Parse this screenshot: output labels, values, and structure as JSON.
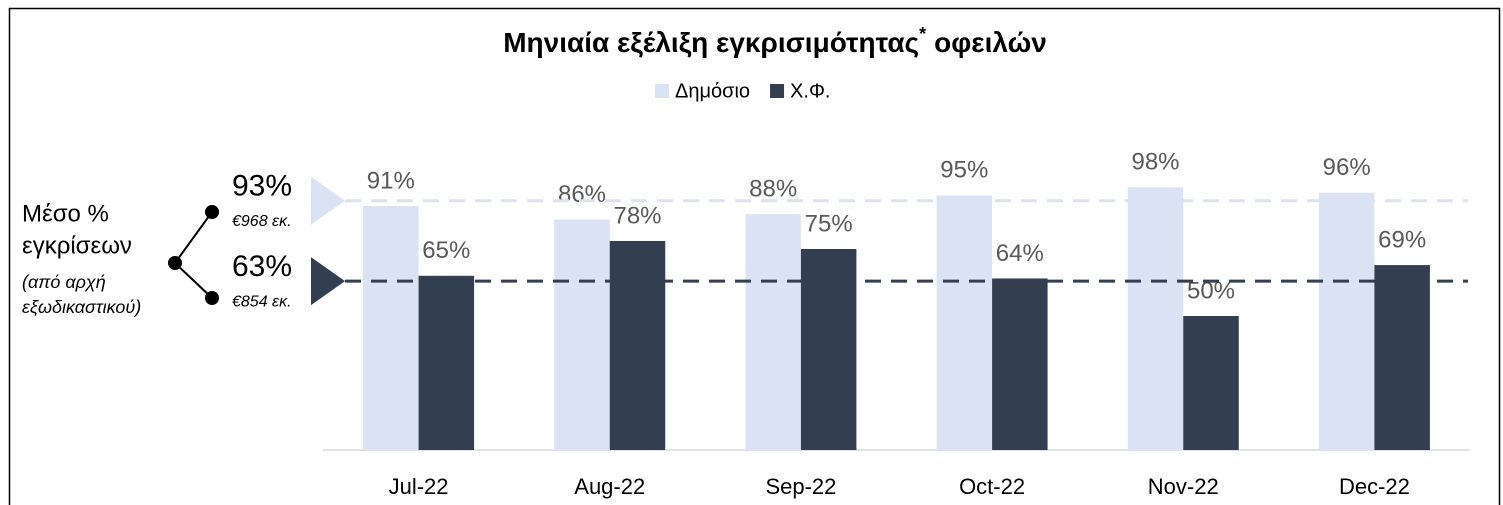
{
  "chart_data": {
    "type": "bar",
    "title": "Μηνιαία εξέλιξη εγκρισιμότητας",
    "title_mark": "*",
    "title_end": "οφειλών",
    "categories": [
      "Jul-22",
      "Aug-22",
      "Sep-22",
      "Oct-22",
      "Nov-22",
      "Dec-22"
    ],
    "series": [
      {
        "name": "Δημόσιο",
        "color": "#dae3f3",
        "values": [
          91,
          86,
          88,
          95,
          98,
          96
        ],
        "value_labels": [
          "91%",
          "86%",
          "88%",
          "95%",
          "98%",
          "96%"
        ]
      },
      {
        "name": "Χ.Φ.",
        "color": "#333f50",
        "values": [
          65,
          78,
          75,
          64,
          50,
          69
        ],
        "value_labels": [
          "65%",
          "78%",
          "75%",
          "64%",
          "50%",
          "69%"
        ]
      }
    ],
    "ylim": [
      0,
      100
    ],
    "reference_lines": [
      {
        "value": 93,
        "label": "93%",
        "note": "€968 εκ.",
        "color": "#dae3f3"
      },
      {
        "value": 63,
        "label": "63%",
        "note": "€854 εκ.",
        "color": "#333f50"
      }
    ],
    "annotation": [
      "Μέσο %",
      "εγκρίσεων"
    ],
    "annotation_note": [
      "(από αρχή",
      "εξωδικαστικού)"
    ]
  }
}
